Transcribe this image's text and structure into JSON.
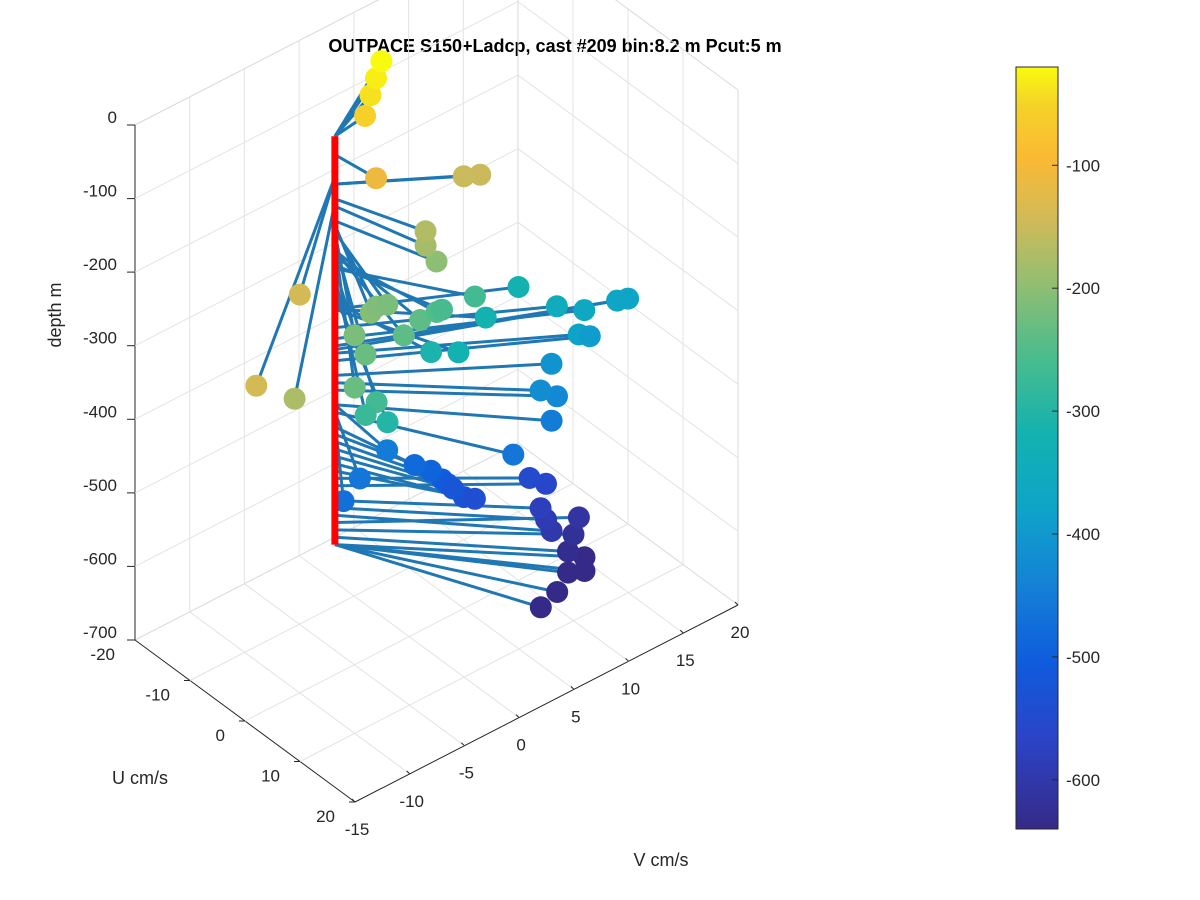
{
  "chart_data": {
    "type": "scatter",
    "title": "OUTPACE S150+Ladcp, cast #209 bin:8.2 m  Pcut:5 m",
    "xlabel": "V cm/s",
    "ylabel": "U cm/s",
    "zlabel": "depth m",
    "xlim": [
      -15,
      20
    ],
    "ylim": [
      -20,
      20
    ],
    "zlim": [
      -700,
      0
    ],
    "x_ticks": [
      "-15",
      "-10",
      "-5",
      "0",
      "5",
      "10",
      "15",
      "20"
    ],
    "y_ticks": [
      "-20",
      "-10",
      "0",
      "10",
      "20"
    ],
    "z_ticks": [
      "0",
      "-100",
      "-200",
      "-300",
      "-400",
      "-500",
      "-600",
      "-700"
    ],
    "grid": true,
    "colorbar": {
      "ticks": [
        "-100",
        "-200",
        "-300",
        "-400",
        "-500",
        "-600"
      ],
      "range": [
        -640,
        -20
      ],
      "colormap": "parula"
    },
    "colors": {
      "reference_line": "#ff0000",
      "vectors": "#1f77b4"
    },
    "points": [
      {
        "v": 4.0,
        "u": -13,
        "z": -20
      },
      {
        "v": 3.0,
        "u": -12,
        "z": -30
      },
      {
        "v": 2.0,
        "u": -11,
        "z": -40
      },
      {
        "v": 1.0,
        "u": -10,
        "z": -55
      },
      {
        "v": -11.0,
        "u": 2,
        "z": -140
      },
      {
        "v": -20.0,
        "u": 12,
        "z": -140
      },
      {
        "v": 0.0,
        "u": -6,
        "z": -110
      },
      {
        "v": 7.0,
        "u": -4,
        "z": -150
      },
      {
        "v": 8.0,
        "u": -3,
        "z": -150
      },
      {
        "v": 2.0,
        "u": -1,
        "z": -170
      },
      {
        "v": 1.5,
        "u": 0,
        "z": -180
      },
      {
        "v": 2.0,
        "u": 1,
        "z": -200
      },
      {
        "v": -17.0,
        "u": 13,
        "z": -175
      },
      {
        "v": -5.0,
        "u": 3,
        "z": -205
      },
      {
        "v": -4.0,
        "u": 2,
        "z": -210
      },
      {
        "v": -3.0,
        "u": 2,
        "z": -215
      },
      {
        "v": -7.0,
        "u": 4,
        "z": -215
      },
      {
        "v": -7.0,
        "u": 6,
        "z": -230
      },
      {
        "v": -10.0,
        "u": 10,
        "z": -230
      },
      {
        "v": -3.0,
        "u": 5,
        "z": -240
      },
      {
        "v": -1.0,
        "u": 4,
        "z": -240
      },
      {
        "v": 1.0,
        "u": 3,
        "z": -250
      },
      {
        "v": 2.0,
        "u": 2,
        "z": -260
      },
      {
        "v": 5.0,
        "u": 2,
        "z": -265
      },
      {
        "v": -8.0,
        "u": 10,
        "z": -265
      },
      {
        "v": -9.0,
        "u": 10,
        "z": -275
      },
      {
        "v": -7.0,
        "u": 10,
        "z": -300
      },
      {
        "v": 1.0,
        "u": 2,
        "z": -310
      },
      {
        "v": 3.0,
        "u": 3,
        "z": -320
      },
      {
        "v": 7.0,
        "u": 0,
        "z": -320
      },
      {
        "v": 11.0,
        "u": -2,
        "z": -320
      },
      {
        "v": 13.0,
        "u": 1,
        "z": -345
      },
      {
        "v": 15.0,
        "u": 2,
        "z": -360
      },
      {
        "v": 18.0,
        "u": 2,
        "z": -370
      },
      {
        "v": 19.0,
        "u": 2,
        "z": -375
      },
      {
        "v": 14.0,
        "u": 3,
        "z": -380
      },
      {
        "v": 15.0,
        "u": 3,
        "z": -390
      },
      {
        "v": 12.0,
        "u": 2,
        "z": -410
      },
      {
        "v": 10.0,
        "u": 4,
        "z": -420
      },
      {
        "v": 11.0,
        "u": 5,
        "z": -430
      },
      {
        "v": 10.0,
        "u": 6,
        "z": -450
      },
      {
        "v": 6.0,
        "u": 7,
        "z": -460
      },
      {
        "v": -1.0,
        "u": -2,
        "z": -450
      },
      {
        "v": -4.0,
        "u": -1,
        "z": -460
      },
      {
        "v": -6.0,
        "u": 0,
        "z": -470
      },
      {
        "v": 1.0,
        "u": -1,
        "z": -480
      },
      {
        "v": 2.0,
        "u": 0,
        "z": -490
      },
      {
        "v": 2.5,
        "u": 1,
        "z": -500
      },
      {
        "v": 3.0,
        "u": 1,
        "z": -510
      },
      {
        "v": 3.5,
        "u": 1,
        "z": -520
      },
      {
        "v": 4.0,
        "u": 2,
        "z": -530
      },
      {
        "v": 5.0,
        "u": 2,
        "z": -540
      },
      {
        "v": 10.0,
        "u": 2,
        "z": -550
      },
      {
        "v": 11.0,
        "u": 3,
        "z": -560
      },
      {
        "v": 10.0,
        "u": 4,
        "z": -580
      },
      {
        "v": 10.0,
        "u": 5,
        "z": -590
      },
      {
        "v": 10.0,
        "u": 6,
        "z": -600
      },
      {
        "v": 13.0,
        "u": 5,
        "z": -610
      },
      {
        "v": 12.0,
        "u": 6,
        "z": -620
      },
      {
        "v": 11.0,
        "u": 7,
        "z": -630
      },
      {
        "v": 12.0,
        "u": 8,
        "z": -640
      },
      {
        "v": 10.0,
        "u": 9,
        "z": -640
      },
      {
        "v": 11.0,
        "u": 10,
        "z": -640
      },
      {
        "v": 8.0,
        "u": 11,
        "z": -640
      },
      {
        "v": 6.0,
        "u": 12,
        "z": -640
      }
    ]
  }
}
